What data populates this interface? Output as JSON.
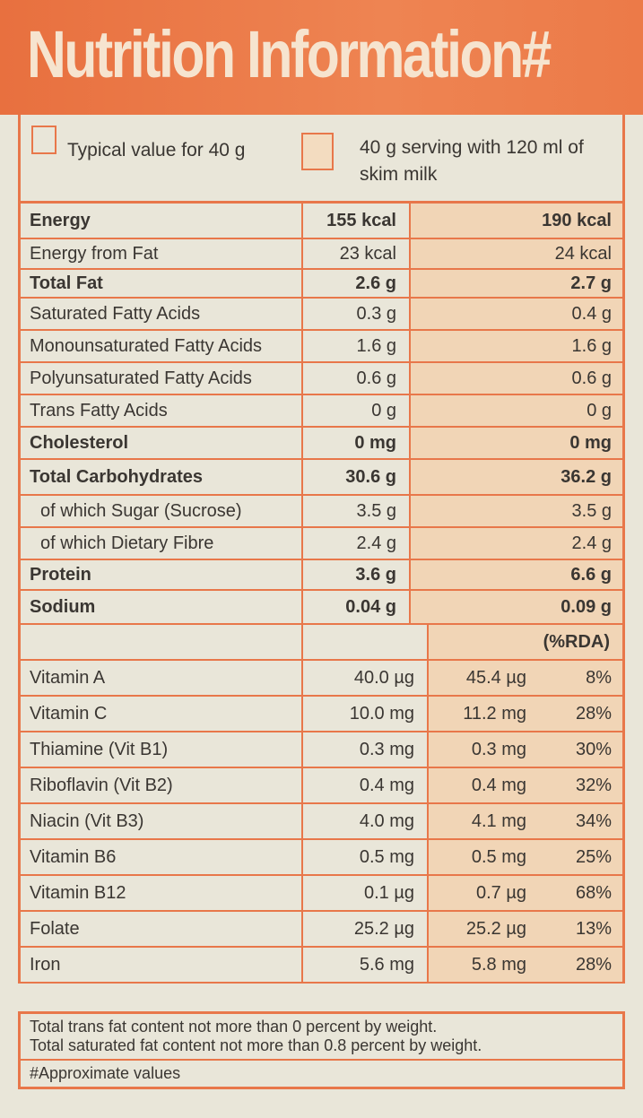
{
  "title": "Nutrition Information#",
  "legend": {
    "typical": "Typical value for 40 g",
    "with_milk": "40 g serving with 120 ml of skim milk"
  },
  "nutrients": [
    {
      "label": "Energy",
      "v1": "155 kcal",
      "v2": "190 kcal",
      "bold": true
    },
    {
      "label": "Energy from Fat",
      "v1": "23 kcal",
      "v2": "24 kcal"
    },
    {
      "label": "Total Fat",
      "v1": "2.6 g",
      "v2": "2.7 g",
      "bold": true
    },
    {
      "label": "Saturated Fatty Acids",
      "v1": "0.3 g",
      "v2": "0.4 g"
    },
    {
      "label": "Monounsaturated Fatty Acids",
      "v1": "1.6 g",
      "v2": "1.6 g"
    },
    {
      "label": "Polyunsaturated Fatty Acids",
      "v1": "0.6 g",
      "v2": "0.6 g"
    },
    {
      "label": "Trans Fatty Acids",
      "v1": "0 g",
      "v2": "0 g"
    },
    {
      "label": "Cholesterol",
      "v1": "0 mg",
      "v2": "0 mg",
      "bold": true
    },
    {
      "label": "Total Carbohydrates",
      "v1": "30.6 g",
      "v2": "36.2 g",
      "bold": true
    },
    {
      "label": "of which Sugar (Sucrose)",
      "v1": "3.5 g",
      "v2": "3.5 g"
    },
    {
      "label": "of which Dietary Fibre",
      "v1": "2.4 g",
      "v2": "2.4 g"
    },
    {
      "label": "Protein",
      "v1": "3.6 g",
      "v2": "6.6 g",
      "bold": true
    },
    {
      "label": "Sodium",
      "v1": "0.04 g",
      "v2": "0.09 g",
      "bold": true
    }
  ],
  "rda_header": "(%RDA)",
  "vitamins": [
    {
      "label": "Vitamin A",
      "v1": "40.0 µg",
      "v2": "45.4 µg",
      "rda": "8%"
    },
    {
      "label": "Vitamin C",
      "v1": "10.0 mg",
      "v2": "11.2 mg",
      "rda": "28%"
    },
    {
      "label": "Thiamine (Vit B1)",
      "v1": "0.3 mg",
      "v2": "0.3 mg",
      "rda": "30%"
    },
    {
      "label": "Riboflavin (Vit B2)",
      "v1": "0.4 mg",
      "v2": "0.4 mg",
      "rda": "32%"
    },
    {
      "label": "Niacin (Vit B3)",
      "v1": "4.0 mg",
      "v2": "4.1 mg",
      "rda": "34%"
    },
    {
      "label": "Vitamin B6",
      "v1": "0.5 mg",
      "v2": "0.5 mg",
      "rda": "25%"
    },
    {
      "label": "Vitamin B12",
      "v1": "0.1 µg",
      "v2": "0.7 µg",
      "rda": "68%"
    },
    {
      "label": "Folate",
      "v1": "25.2 µg",
      "v2": "25.2 µg",
      "rda": "13%"
    },
    {
      "label": "Iron",
      "v1": "5.6 mg",
      "v2": "5.8 mg",
      "rda": "28%"
    }
  ],
  "footnotes": [
    "Total trans fat content not more than 0 percent by weight.",
    "Total saturated fat content not more than 0.8 percent by weight."
  ],
  "approx": "#Approximate values",
  "colors": {
    "accent": "#e8774a",
    "shade": "#f1d5b6"
  }
}
